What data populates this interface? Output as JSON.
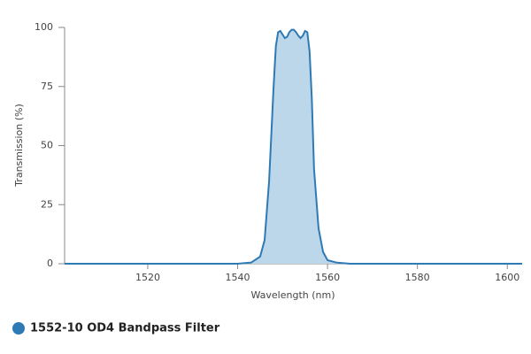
{
  "chart_data": {
    "type": "area",
    "x_label": "Wavelength (nm)",
    "y_label": "Transmission (%)",
    "x": [
      1501.5,
      1540,
      1543,
      1545,
      1546,
      1547,
      1548,
      1548.5,
      1549,
      1549.5,
      1550,
      1550.5,
      1551,
      1551.5,
      1552,
      1552.5,
      1553,
      1553.5,
      1554,
      1554.5,
      1555,
      1555.5,
      1556,
      1556.5,
      1557,
      1558,
      1559,
      1560,
      1562,
      1565,
      1603.3
    ],
    "series": [
      {
        "name": "1552-10 OD4 Bandpass Filter",
        "color": "#2e7ab5",
        "fill": "#bcd6ea",
        "values": [
          0,
          0,
          0.5,
          3,
          10,
          35,
          75,
          92,
          98,
          98.5,
          97,
          95.5,
          96,
          98,
          99,
          99,
          98,
          96.5,
          95.5,
          96.5,
          98.5,
          98,
          90,
          70,
          40,
          15,
          5,
          1.5,
          0.5,
          0,
          0
        ]
      }
    ],
    "xlim": [
      1501.5,
      1603.3
    ],
    "ylim": [
      0,
      100
    ],
    "xticks": [
      1520,
      1540,
      1560,
      1580,
      1600
    ],
    "yticks": [
      0,
      25,
      50,
      75,
      100
    ],
    "grid": false,
    "legend": "bottom-left"
  }
}
